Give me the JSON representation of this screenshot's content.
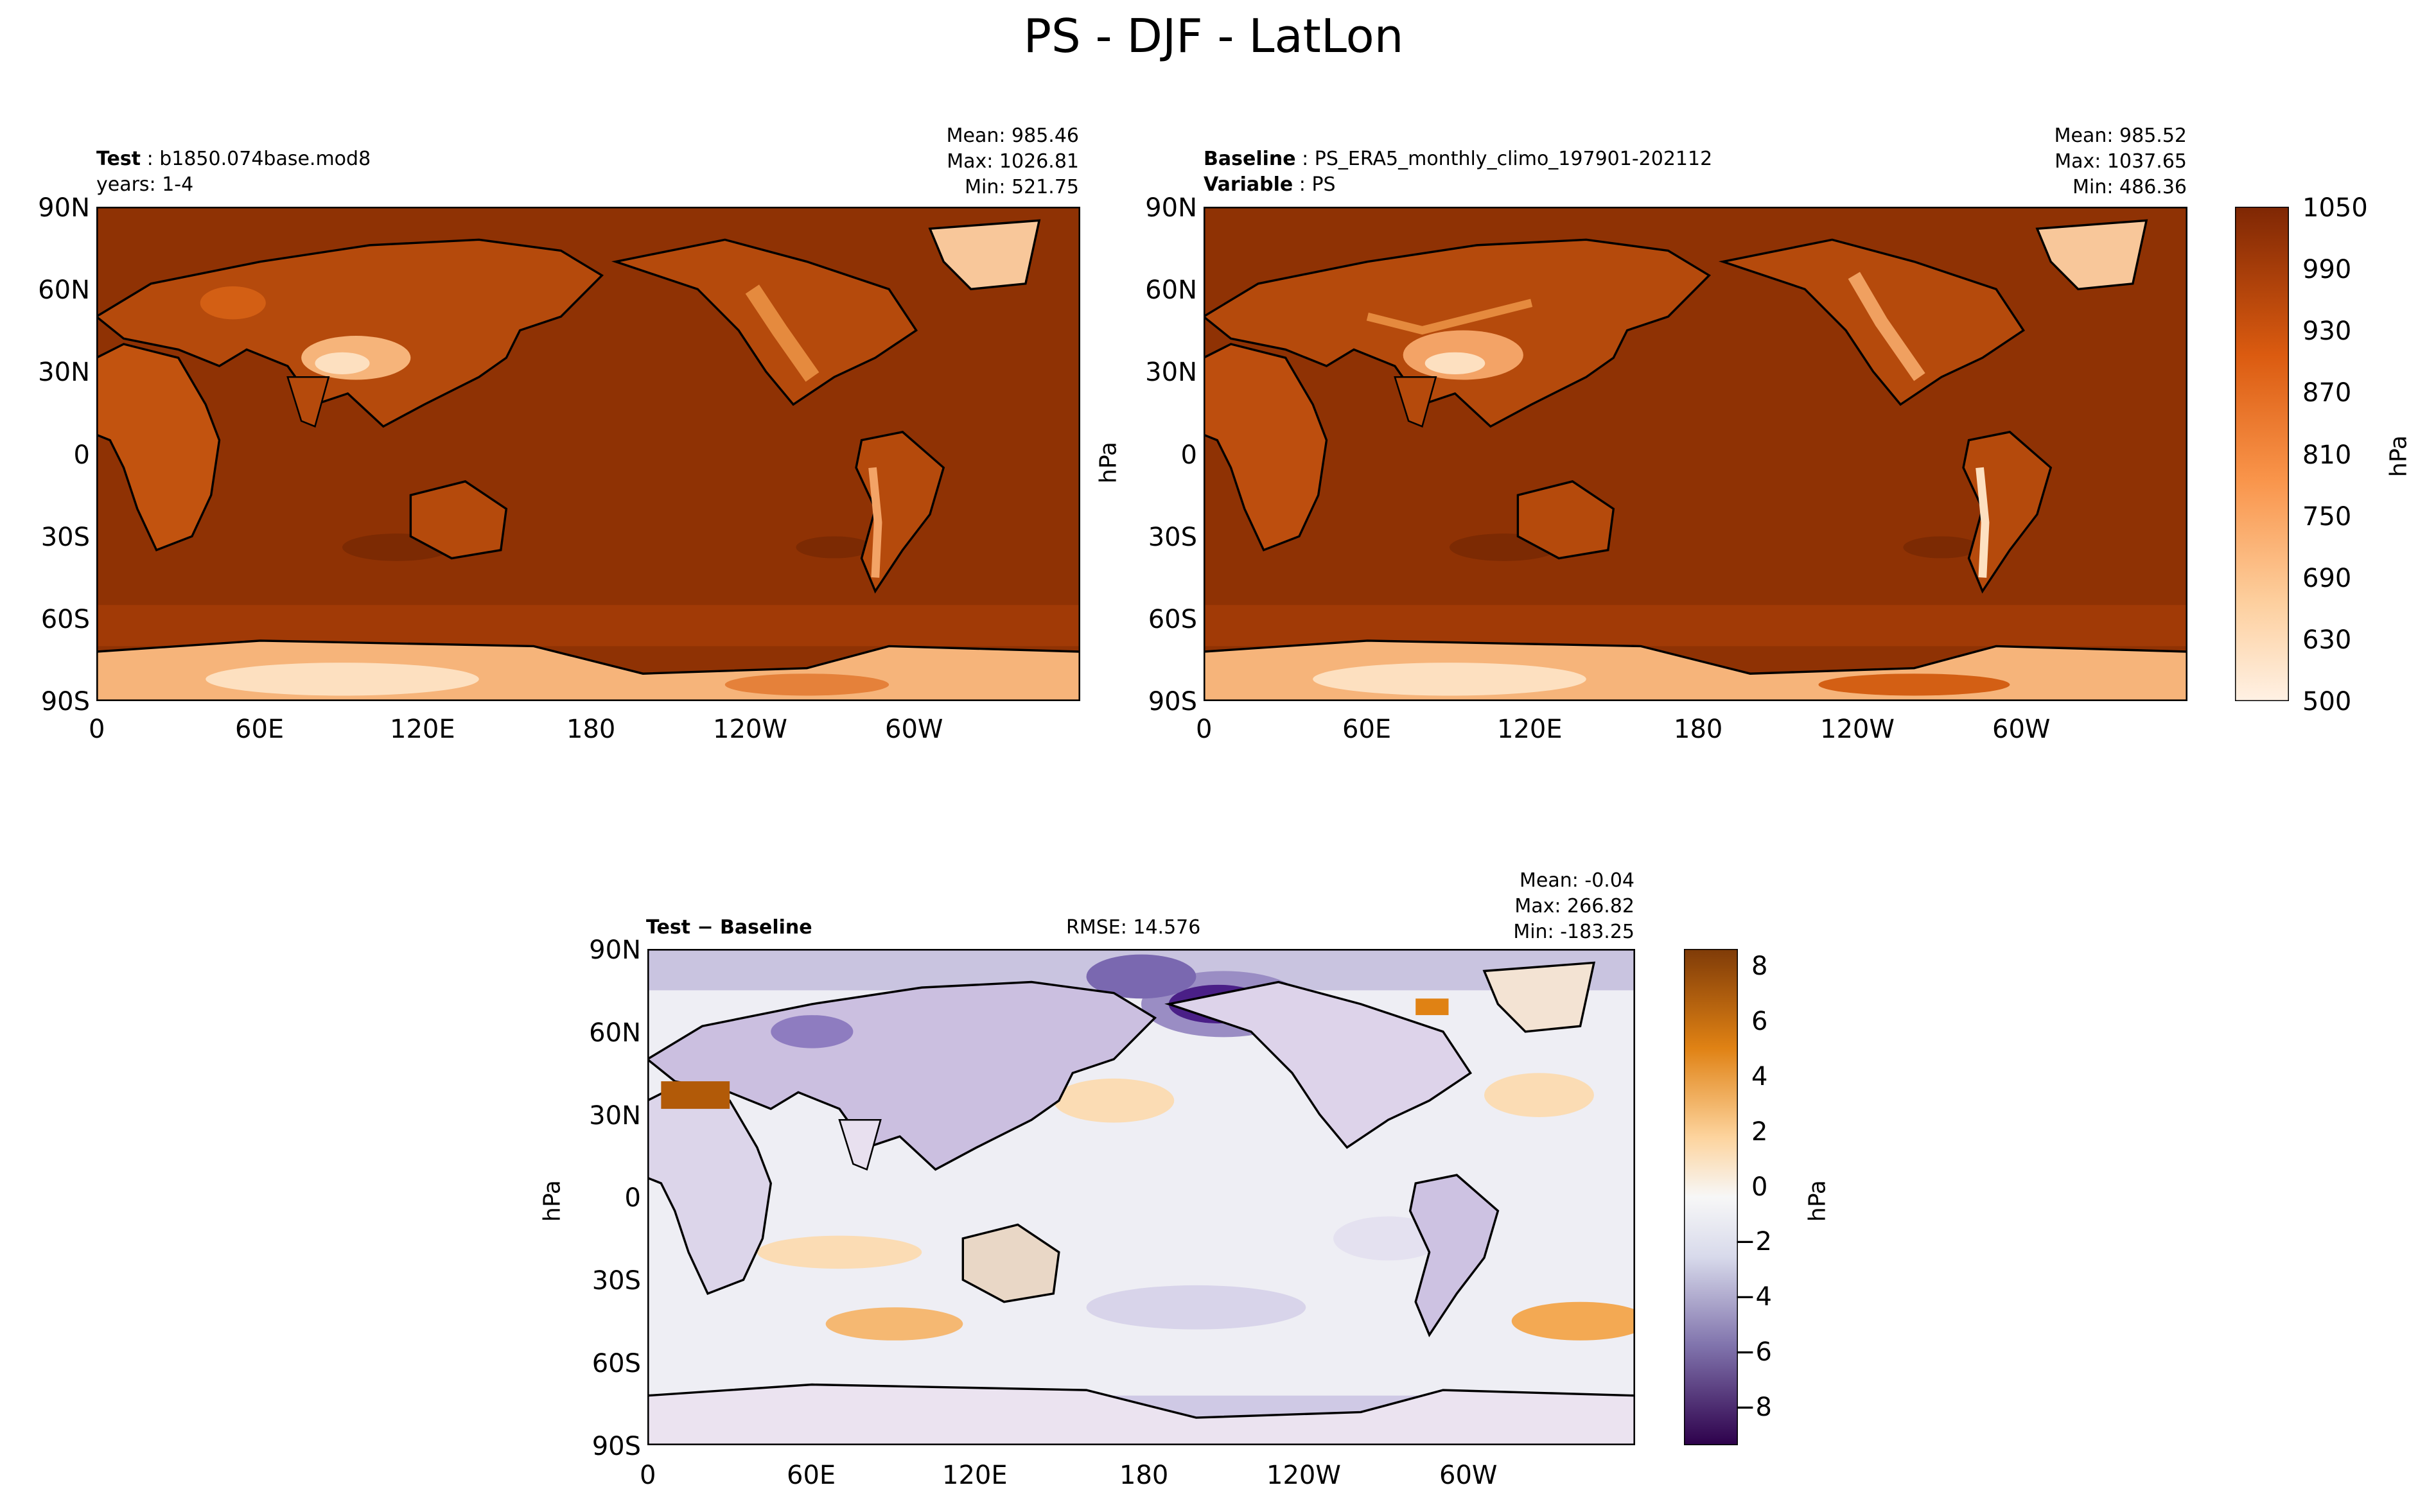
{
  "figure_title": "PS - DJF - LatLon",
  "chart_data": [
    {
      "type": "heatmap",
      "panel": "test",
      "label_key": "Test",
      "label_value": "b1850.074base.mod8",
      "subline": "years: 1-4",
      "stats": {
        "mean": "Mean: 985.46",
        "max": "Max: 1026.81",
        "min": "Min: 521.75"
      },
      "variable": "PS",
      "units": "hPa",
      "lon_ticks": [
        "0",
        "60E",
        "120E",
        "180",
        "120W",
        "60W"
      ],
      "lat_ticks": [
        "90N",
        "60N",
        "30N",
        "0",
        "30S",
        "60S",
        "90S"
      ],
      "xlim": [
        0,
        360
      ],
      "ylim": [
        -90,
        90
      ]
    },
    {
      "type": "heatmap",
      "panel": "baseline",
      "label_key": "Baseline",
      "label_value": "PS_ERA5_monthly_climo_197901-202112",
      "label2_key": "Variable",
      "label2_value": "PS",
      "stats": {
        "mean": "Mean: 985.52",
        "max": "Max: 1037.65",
        "min": "Min: 486.36"
      },
      "units": "hPa",
      "lon_ticks": [
        "0",
        "60E",
        "120E",
        "180",
        "120W",
        "60W"
      ],
      "lat_ticks": [
        "90N",
        "60N",
        "30N",
        "0",
        "30S",
        "60S",
        "90S"
      ],
      "xlim": [
        0,
        360
      ],
      "ylim": [
        -90,
        90
      ],
      "colorbar": {
        "ticks": [
          "1050",
          "990",
          "930",
          "870",
          "810",
          "750",
          "690",
          "630",
          "500"
        ],
        "levels": [
          500,
          630,
          690,
          750,
          810,
          870,
          930,
          990,
          1050
        ],
        "label": "hPa"
      }
    },
    {
      "type": "heatmap",
      "panel": "difference",
      "label": "Test − Baseline",
      "rmse": "RMSE: 14.576",
      "stats": {
        "mean": "Mean: -0.04",
        "max": "Max: 266.82",
        "min": "Min: -183.25"
      },
      "units": "hPa",
      "lon_ticks": [
        "0",
        "60E",
        "120E",
        "180",
        "120W",
        "60W"
      ],
      "lat_ticks": [
        "90N",
        "60N",
        "30N",
        "0",
        "30S",
        "60S",
        "90S"
      ],
      "xlim": [
        0,
        360
      ],
      "ylim": [
        -90,
        90
      ],
      "colorbar": {
        "ticks": [
          "8",
          "6",
          "4",
          "2",
          "0",
          "−2",
          "−4",
          "−6",
          "−8"
        ],
        "range": [
          -9,
          9
        ],
        "label": "hPa"
      }
    }
  ],
  "colors": {
    "ocean_ps": "#8f3204",
    "land_ps": "#d35f14",
    "high_terrain": "#fde0c0",
    "diff_pos": "#e08214",
    "diff_neg": "#4a1f87",
    "diff_zero": "#f2f2f2",
    "coast": "#000000"
  }
}
